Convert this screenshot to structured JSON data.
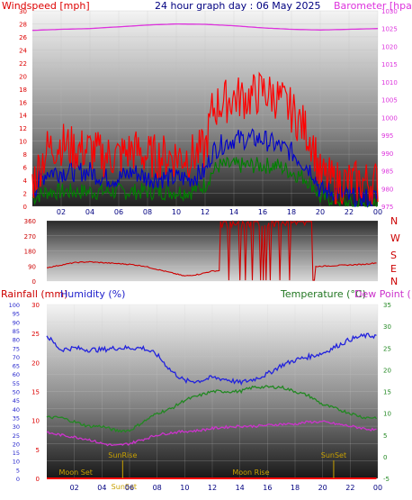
{
  "header": {
    "wind_label": "Windspeed [mph]",
    "title": "24 hour graph day : 06 May 2025",
    "baro_label": "Barometer [hpa]"
  },
  "colors": {
    "wind_gust": "#ff0000",
    "wind_avg": "#0000cc",
    "wind_low": "#008000",
    "barometer": "#dd33dd",
    "direction": "#cc0000",
    "humidity": "#2222dd",
    "temperature": "#228822",
    "dew_point": "#cc33cc",
    "rainfall": "#ff0000",
    "astro": "#c8a000"
  },
  "compass": [
    "N",
    "W",
    "S",
    "E",
    "N"
  ],
  "lower_header": {
    "rain_label": "Rainfall (mm)",
    "humidity_label": "Humidity (%)",
    "temp_label": "Temperature (°C)",
    "dew_label": "Dew Point (°C)"
  },
  "astro_events": [
    {
      "label": "SunRise",
      "hour": 5.5
    },
    {
      "label": "SunSet",
      "hour": 20.8
    },
    {
      "label": "Moon Set",
      "hour": 2.1
    },
    {
      "label": "Moon Rise",
      "hour": 14.8
    },
    {
      "label": "SunSet",
      "hour": 5.6
    }
  ],
  "chart_data": [
    {
      "type": "line",
      "xlim": [
        0,
        24
      ],
      "x_ticks": [
        "02",
        "04",
        "06",
        "08",
        "10",
        "12",
        "14",
        "16",
        "18",
        "20",
        "22",
        "00"
      ],
      "ylim_left": [
        0,
        30
      ],
      "left_ticks": [
        "0",
        "2",
        "4",
        "6",
        "8",
        "10",
        "12",
        "14",
        "16",
        "18",
        "20",
        "22",
        "24",
        "26",
        "28",
        "30"
      ],
      "ylim_right": [
        975,
        1030
      ],
      "right_ticks": [
        "975",
        "980",
        "985",
        "990",
        "995",
        "1000",
        "1005",
        "1010",
        "1015",
        "1020",
        "1025",
        "1030"
      ],
      "series": [
        {
          "role": "gust",
          "hours": [
            0,
            1,
            2,
            3,
            4,
            5,
            6,
            7,
            8,
            9,
            10,
            11,
            12,
            12.5,
            13,
            14,
            15,
            16,
            17,
            18,
            19,
            19.5,
            20,
            21,
            22,
            23,
            24
          ],
          "values": [
            3,
            8,
            9,
            8,
            8,
            7,
            7,
            8,
            7,
            7,
            7,
            7,
            8,
            14,
            15,
            16,
            16,
            17,
            16,
            14,
            11,
            9,
            4,
            3,
            3,
            3,
            3
          ]
        },
        {
          "role": "average",
          "hours": [
            0,
            1,
            2,
            3,
            4,
            5,
            6,
            7,
            8,
            9,
            10,
            11,
            12,
            12.5,
            13,
            14,
            15,
            16,
            17,
            18,
            19,
            19.5,
            20,
            21,
            22,
            23,
            24
          ],
          "values": [
            2,
            5,
            5,
            5,
            5,
            4,
            4,
            5,
            4,
            4,
            4,
            4,
            5,
            8,
            9,
            10,
            10,
            10,
            9,
            8,
            6,
            5,
            2,
            2,
            1,
            1,
            1
          ]
        },
        {
          "role": "low",
          "hours": [
            0,
            1,
            2,
            3,
            4,
            5,
            6,
            7,
            8,
            9,
            10,
            11,
            12,
            12.5,
            13,
            14,
            15,
            16,
            17,
            18,
            19,
            19.5,
            20,
            21,
            22,
            23,
            24
          ],
          "values": [
            1,
            2,
            2,
            2,
            2,
            2,
            2,
            2,
            2,
            2,
            2,
            2,
            3,
            5,
            6,
            6,
            6,
            6,
            6,
            5,
            4,
            3,
            1,
            1,
            0,
            0,
            0
          ]
        },
        {
          "role": "barometer",
          "axis": "right",
          "hours": [
            0,
            2,
            4,
            6,
            8,
            10,
            12,
            14,
            16,
            18,
            20,
            22,
            24
          ],
          "values": [
            1024.5,
            1024.8,
            1025,
            1025.5,
            1026,
            1026.3,
            1026.2,
            1025.8,
            1025.2,
            1024.8,
            1024.6,
            1024.8,
            1025
          ]
        }
      ]
    },
    {
      "type": "line",
      "xlim": [
        0,
        24
      ],
      "ylim": [
        0,
        360
      ],
      "y_ticks": [
        "0",
        "90",
        "180",
        "270",
        "360"
      ],
      "series": [
        {
          "role": "direction",
          "hours": [
            0,
            1,
            2,
            3,
            4,
            5,
            6,
            7,
            8,
            9,
            10,
            11,
            12,
            23,
            24
          ],
          "values": [
            80,
            95,
            110,
            115,
            110,
            105,
            100,
            90,
            70,
            50,
            30,
            40,
            60,
            100,
            110
          ]
        }
      ],
      "switching_block": [
        12.5,
        19.5
      ]
    },
    {
      "type": "line",
      "xlim": [
        0,
        24
      ],
      "x_ticks": [
        "02",
        "04",
        "06",
        "08",
        "10",
        "12",
        "14",
        "16",
        "18",
        "20",
        "22",
        "00"
      ],
      "ylim_rain": [
        0,
        30
      ],
      "rain_ticks": [
        "0",
        "5",
        "10",
        "15",
        "20",
        "25",
        "30"
      ],
      "ylim_hum": [
        0,
        100
      ],
      "hum_ticks": [
        "0",
        "5",
        "10",
        "15",
        "20",
        "25",
        "30",
        "35",
        "40",
        "45",
        "50",
        "55",
        "60",
        "65",
        "70",
        "75",
        "80",
        "85",
        "90",
        "95",
        "100"
      ],
      "ylim_temp": [
        -5,
        35
      ],
      "temp_ticks": [
        "-5",
        "0",
        "5",
        "10",
        "15",
        "20",
        "25",
        "30",
        "35"
      ],
      "series": [
        {
          "role": "humidity",
          "axis": "hum",
          "hours": [
            0,
            1,
            2,
            3,
            4,
            5,
            6,
            7,
            8,
            9,
            10,
            11,
            12,
            13,
            14,
            15,
            16,
            17,
            18,
            19,
            20,
            21,
            22,
            23,
            24
          ],
          "values": [
            82,
            74,
            75,
            74,
            74,
            75,
            75,
            75,
            71,
            62,
            56,
            56,
            58,
            57,
            55,
            57,
            60,
            65,
            68,
            70,
            72,
            76,
            80,
            82,
            82
          ]
        },
        {
          "role": "temperature",
          "axis": "temp",
          "hours": [
            0,
            1,
            2,
            3,
            4,
            5,
            6,
            7,
            8,
            9,
            10,
            11,
            12,
            13,
            14,
            15,
            16,
            17,
            18,
            19,
            20,
            21,
            22,
            23,
            24
          ],
          "values": [
            9,
            9,
            8,
            7,
            7,
            6,
            6,
            8,
            10,
            11,
            13,
            14,
            15,
            15,
            15,
            16,
            16,
            16,
            15,
            14,
            12,
            11,
            10,
            9,
            9
          ]
        },
        {
          "role": "dew_point",
          "axis": "temp",
          "hours": [
            0,
            1,
            2,
            3,
            4,
            5,
            6,
            7,
            8,
            9,
            10,
            11,
            12,
            13,
            14,
            15,
            16,
            17,
            18,
            19,
            20,
            21,
            22,
            23,
            24
          ],
          "values": [
            5.5,
            5,
            4.5,
            4,
            3,
            2.5,
            3,
            4,
            5,
            5.5,
            5.8,
            6,
            6.5,
            6.8,
            7,
            7,
            7.2,
            7.5,
            7.5,
            8,
            8,
            7.5,
            7,
            6.5,
            6
          ]
        },
        {
          "role": "rainfall",
          "axis": "rain",
          "hours": [
            0,
            24
          ],
          "values": [
            0,
            0
          ]
        }
      ]
    }
  ]
}
